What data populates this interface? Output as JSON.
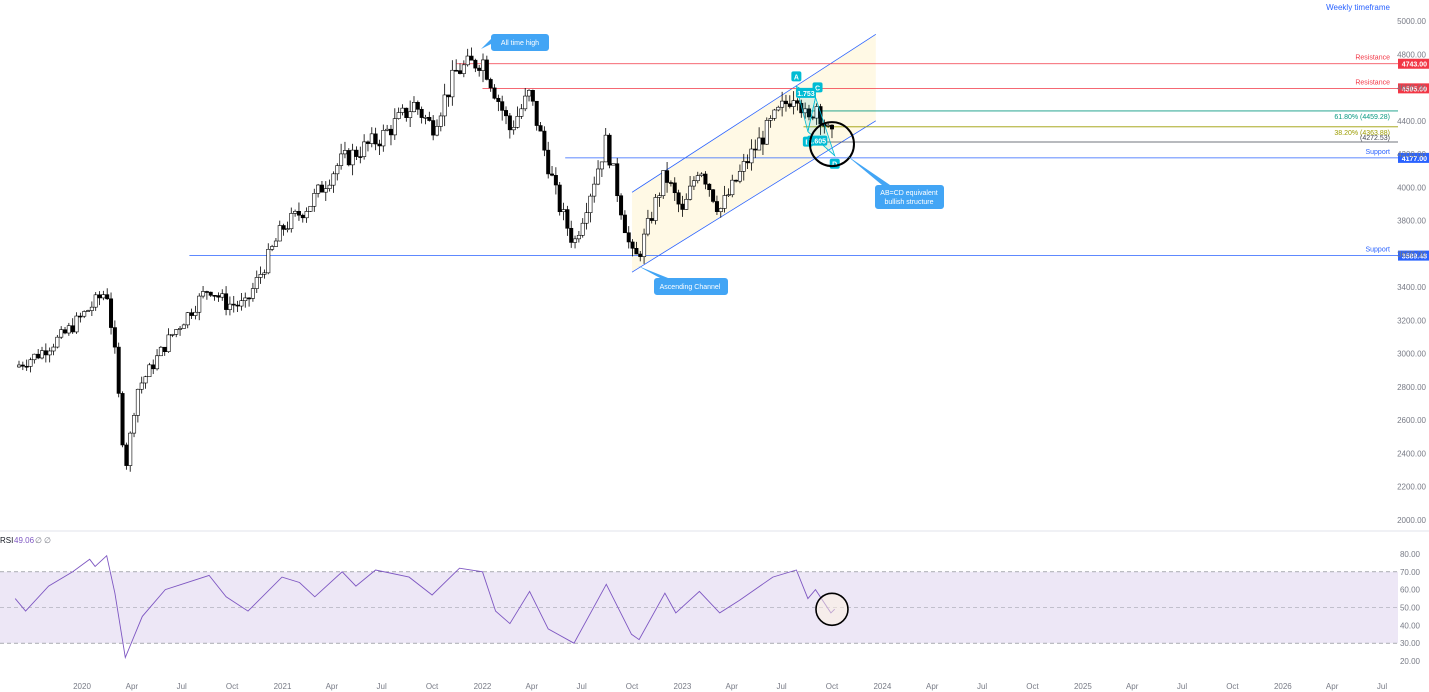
{
  "header": {
    "timeframe": "Weekly timeframe"
  },
  "colors": {
    "up": "#ffffff",
    "down": "#000000",
    "wick": "#000000",
    "resistance": "#f23645",
    "support": "#2962ff",
    "channel": "#2962ff",
    "channel_fill": "#fff8e1",
    "callout": "#42a5f5",
    "pattern": "#00bcd4",
    "fib_618": "#089981",
    "fib_382": "#9c9c00",
    "rsi": "#7e57c2",
    "rsi_band": "#ede7f6"
  },
  "chart_data": [
    {
      "type": "candlestick",
      "ylim": [
        2000,
        5000
      ],
      "x_start": "2019-09",
      "x_end": "2026-08",
      "y_ticks": [
        5000,
        4800,
        4600,
        4400,
        4200,
        4000,
        3800,
        3600,
        3400,
        3200,
        3000,
        2800,
        2600,
        2400,
        2200,
        2000
      ],
      "y_tick_labels": [
        "5000.00",
        "4800.00",
        "4600.00",
        "4400.00",
        "4200.00",
        "4000.00",
        "3800.00",
        "3600.00",
        "3400.00",
        "3200.00",
        "3000.00",
        "2800.00",
        "2600.00",
        "2400.00",
        "2200.00",
        "2000.00"
      ],
      "x_tick_labels": [
        "2020",
        "Apr",
        "Jul",
        "Oct",
        "2021",
        "Apr",
        "Jul",
        "Oct",
        "2022",
        "Apr",
        "Jul",
        "Oct",
        "2023",
        "Apr",
        "Jul",
        "Oct",
        "2024",
        "Apr",
        "Jul",
        "Oct",
        "2025",
        "Apr",
        "Jul",
        "Oct",
        "2026",
        "Apr",
        "Jul"
      ],
      "x_tick_dates": [
        "2020-01-01",
        "2020-04-01",
        "2020-07-01",
        "2020-10-01",
        "2021-01-01",
        "2021-04-01",
        "2021-07-01",
        "2021-10-01",
        "2022-01-01",
        "2022-04-01",
        "2022-07-01",
        "2022-10-01",
        "2023-01-01",
        "2023-04-01",
        "2023-07-01",
        "2023-10-01",
        "2024-01-01",
        "2024-04-01",
        "2024-07-01",
        "2024-10-01",
        "2025-01-01",
        "2025-04-01",
        "2025-07-01",
        "2025-10-01",
        "2026-01-01",
        "2026-04-01",
        "2026-07-01"
      ],
      "close_path": [
        [
          "2019-09-01",
          2920
        ],
        [
          "2019-10-15",
          3000
        ],
        [
          "2019-12-01",
          3120
        ],
        [
          "2020-02-15",
          3380
        ],
        [
          "2020-03-01",
          3000
        ],
        [
          "2020-03-20",
          2300
        ],
        [
          "2020-04-10",
          2780
        ],
        [
          "2020-06-10",
          3100
        ],
        [
          "2020-08-20",
          3400
        ],
        [
          "2020-09-20",
          3300
        ],
        [
          "2020-10-25",
          3290
        ],
        [
          "2020-12-31",
          3750
        ],
        [
          "2021-02-20",
          3900
        ],
        [
          "2021-04-15",
          4150
        ],
        [
          "2021-06-30",
          4300
        ],
        [
          "2021-08-30",
          4500
        ],
        [
          "2021-10-01",
          4360
        ],
        [
          "2021-11-15",
          4700
        ],
        [
          "2022-01-01",
          4770
        ],
        [
          "2022-02-20",
          4350
        ],
        [
          "2022-03-28",
          4560
        ],
        [
          "2022-05-20",
          3900
        ],
        [
          "2022-06-17",
          3660
        ],
        [
          "2022-08-15",
          4280
        ],
        [
          "2022-09-30",
          3590
        ],
        [
          "2022-10-12",
          3580
        ],
        [
          "2022-11-30",
          4080
        ],
        [
          "2023-01-01",
          3840
        ],
        [
          "2023-02-01",
          4140
        ],
        [
          "2023-03-10",
          3860
        ],
        [
          "2023-05-01",
          4170
        ],
        [
          "2023-06-15",
          4400
        ],
        [
          "2023-07-28",
          4590
        ],
        [
          "2023-08-18",
          4370
        ],
        [
          "2023-09-01",
          4515
        ],
        [
          "2023-09-29",
          4288
        ],
        [
          "2023-10-06",
          4308
        ]
      ],
      "annotations": {
        "ath_callout": "All time high",
        "channel_callout": "Ascending Channel",
        "abcd_callout_line1": "AB=CD equivalent",
        "abcd_callout_line2": "bullish structure",
        "point_a": "A",
        "point_b": "B",
        "point_c": "C",
        "point_d": "D",
        "ratio_abc": "1.753",
        "ratio_bcd": "1.605",
        "fib_618_label": "61.80% (4459.28)",
        "fib_382_label": "38.20% (4363.88)",
        "fib_extra_label": "(4272.53)"
      },
      "horizontal_levels": [
        {
          "name": "resistance-4743",
          "label": "Resistance",
          "value": 4743.0,
          "value_label": "4743.00",
          "color": "#f23645"
        },
        {
          "name": "resistance-4595",
          "label": "Resistance",
          "value": 4595.0,
          "value_label": "4595.00",
          "color": "#f23645"
        },
        {
          "name": "support-4177",
          "label": "Support",
          "value": 4177.0,
          "value_label": "4177.00",
          "color": "#2962ff"
        },
        {
          "name": "support-3589",
          "label": "Support",
          "value": 3589.48,
          "value_label": "3589.48",
          "color": "#2962ff"
        }
      ],
      "fib_levels": [
        {
          "name": "fib-618",
          "value": 4459.28,
          "color": "#089981"
        },
        {
          "name": "fib-382",
          "value": 4363.88,
          "color": "#9c9c00"
        },
        {
          "name": "fib-extra",
          "value": 4272.53,
          "color": "#434651"
        }
      ],
      "abcd_points": [
        {
          "label": "A",
          "date": "2023-07-28",
          "value": 4607
        },
        {
          "label": "B",
          "date": "2023-08-18",
          "value": 4335
        },
        {
          "label": "C",
          "date": "2023-09-01",
          "value": 4541
        },
        {
          "label": "D",
          "date": "2023-10-06",
          "value": 4190
        }
      ],
      "channel": {
        "lower_start": [
          "2022-10-01",
          3490
        ],
        "lower_end": [
          "2023-12-20",
          4400
        ],
        "upper_start": [
          "2022-10-01",
          3970
        ],
        "upper_end": [
          "2023-12-20",
          4920
        ]
      }
    },
    {
      "type": "line",
      "series": [
        {
          "name": "RSI",
          "last_value": "49.06"
        }
      ],
      "header_label": "RSI",
      "value_label": "49.06",
      "extra_labels": [
        "∅",
        "∅"
      ],
      "ylim": [
        15,
        85
      ],
      "y_ticks": [
        80,
        70,
        60,
        50,
        40,
        30,
        20
      ],
      "y_tick_labels": [
        "80.00",
        "70.00",
        "60.00",
        "50.00",
        "40.00",
        "30.00",
        "20.00"
      ],
      "bands": {
        "upper": 70,
        "middle": 50,
        "lower": 30
      },
      "rsi_path": [
        [
          "2019-09-01",
          55
        ],
        [
          "2019-09-20",
          48
        ],
        [
          "2019-11-01",
          62
        ],
        [
          "2019-12-15",
          70
        ],
        [
          "2020-01-15",
          77
        ],
        [
          "2020-01-25",
          73
        ],
        [
          "2020-02-15",
          79
        ],
        [
          "2020-03-01",
          58
        ],
        [
          "2020-03-20",
          22
        ],
        [
          "2020-04-20",
          45
        ],
        [
          "2020-06-01",
          60
        ],
        [
          "2020-07-01",
          63
        ],
        [
          "2020-08-20",
          68
        ],
        [
          "2020-09-20",
          56
        ],
        [
          "2020-10-30",
          48
        ],
        [
          "2020-12-31",
          67
        ],
        [
          "2021-02-01",
          64
        ],
        [
          "2021-03-01",
          56
        ],
        [
          "2021-04-20",
          70
        ],
        [
          "2021-05-15",
          62
        ],
        [
          "2021-06-20",
          71
        ],
        [
          "2021-08-20",
          67
        ],
        [
          "2021-10-01",
          57
        ],
        [
          "2021-11-20",
          72
        ],
        [
          "2022-01-01",
          70
        ],
        [
          "2022-01-25",
          48
        ],
        [
          "2022-02-20",
          41
        ],
        [
          "2022-03-28",
          59
        ],
        [
          "2022-05-01",
          38
        ],
        [
          "2022-06-17",
          30
        ],
        [
          "2022-08-15",
          63
        ],
        [
          "2022-09-30",
          35
        ],
        [
          "2022-10-14",
          32
        ],
        [
          "2022-11-30",
          58
        ],
        [
          "2022-12-20",
          47
        ],
        [
          "2023-02-01",
          59
        ],
        [
          "2023-03-10",
          47
        ],
        [
          "2023-04-15",
          54
        ],
        [
          "2023-06-15",
          67
        ],
        [
          "2023-07-28",
          71
        ],
        [
          "2023-08-18",
          55
        ],
        [
          "2023-09-01",
          60
        ],
        [
          "2023-09-29",
          47
        ],
        [
          "2023-10-06",
          49.06
        ]
      ]
    }
  ]
}
